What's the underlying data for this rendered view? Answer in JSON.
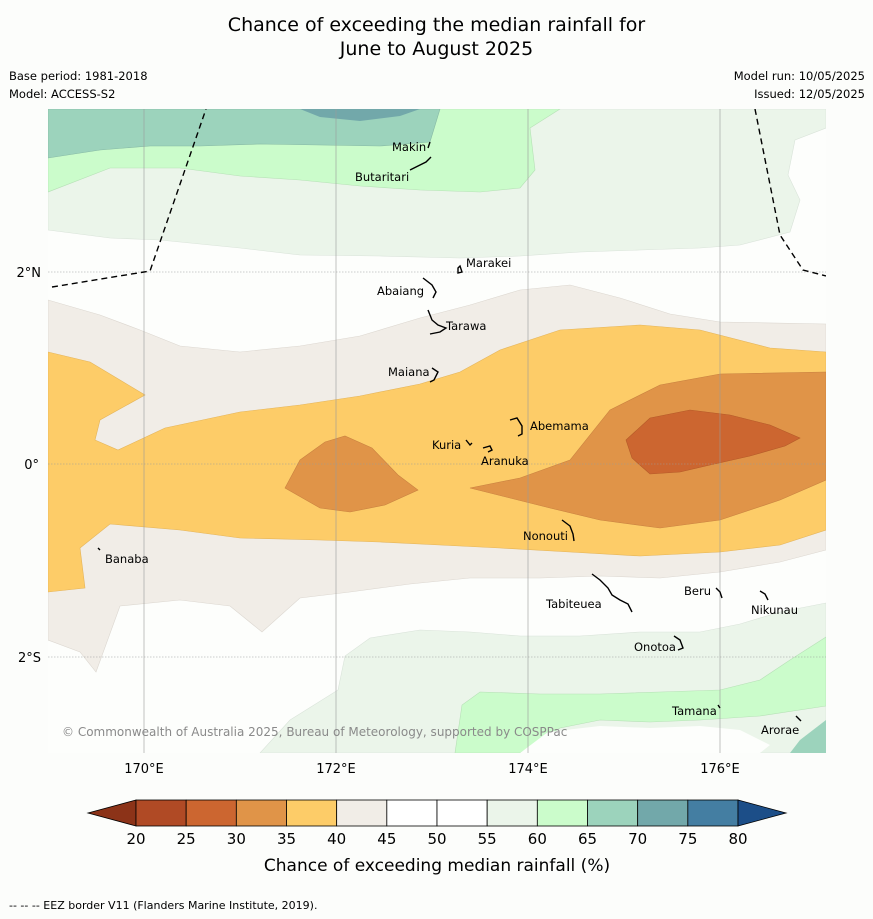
{
  "title_line1": "Chance of exceeding the median rainfall for",
  "title_line2": "June to August 2025",
  "base_period": "Base period: 1981-2018",
  "model": "Model: ACCESS-S2",
  "model_run": "Model run: 10/05/2025",
  "issued": "Issued: 12/05/2025",
  "copyright": "© Commonwealth of Australia 2025, Bureau of Meteorology, supported by COSPPac",
  "eez_note": "-- -- -- EEZ border V11 (Flanders Marine Institute, 2019).",
  "map": {
    "lon_ticks": [
      "170°E",
      "172°E",
      "174°E",
      "176°E"
    ],
    "lat_ticks": [
      "2°N",
      "0°",
      "2°S"
    ],
    "islands": [
      "Makin",
      "Butaritari",
      "Marakei",
      "Abaiang",
      "Tarawa",
      "Maiana",
      "Abemama",
      "Kuria",
      "Aranuka",
      "Nonouti",
      "Banaba",
      "Tabiteuea",
      "Beru",
      "Nikunau",
      "Onotoa",
      "Tamana",
      "Arorae"
    ]
  },
  "colorbar": {
    "label": "Chance of exceeding median rainfall (%)",
    "ticks": [
      "20",
      "25",
      "30",
      "35",
      "40",
      "45",
      "50",
      "55",
      "60",
      "65",
      "70",
      "75",
      "80"
    ],
    "colors": [
      "#b04a25",
      "#cc6630",
      "#e09448",
      "#fdcc68",
      "#f1ede7",
      "#ffffff",
      "#ffffff",
      "#ebf5ea",
      "#cbfccb",
      "#9cd3bc",
      "#72a8aa",
      "#447ea2"
    ],
    "under_color": "#8c3318",
    "over_color": "#1c4e88"
  }
}
